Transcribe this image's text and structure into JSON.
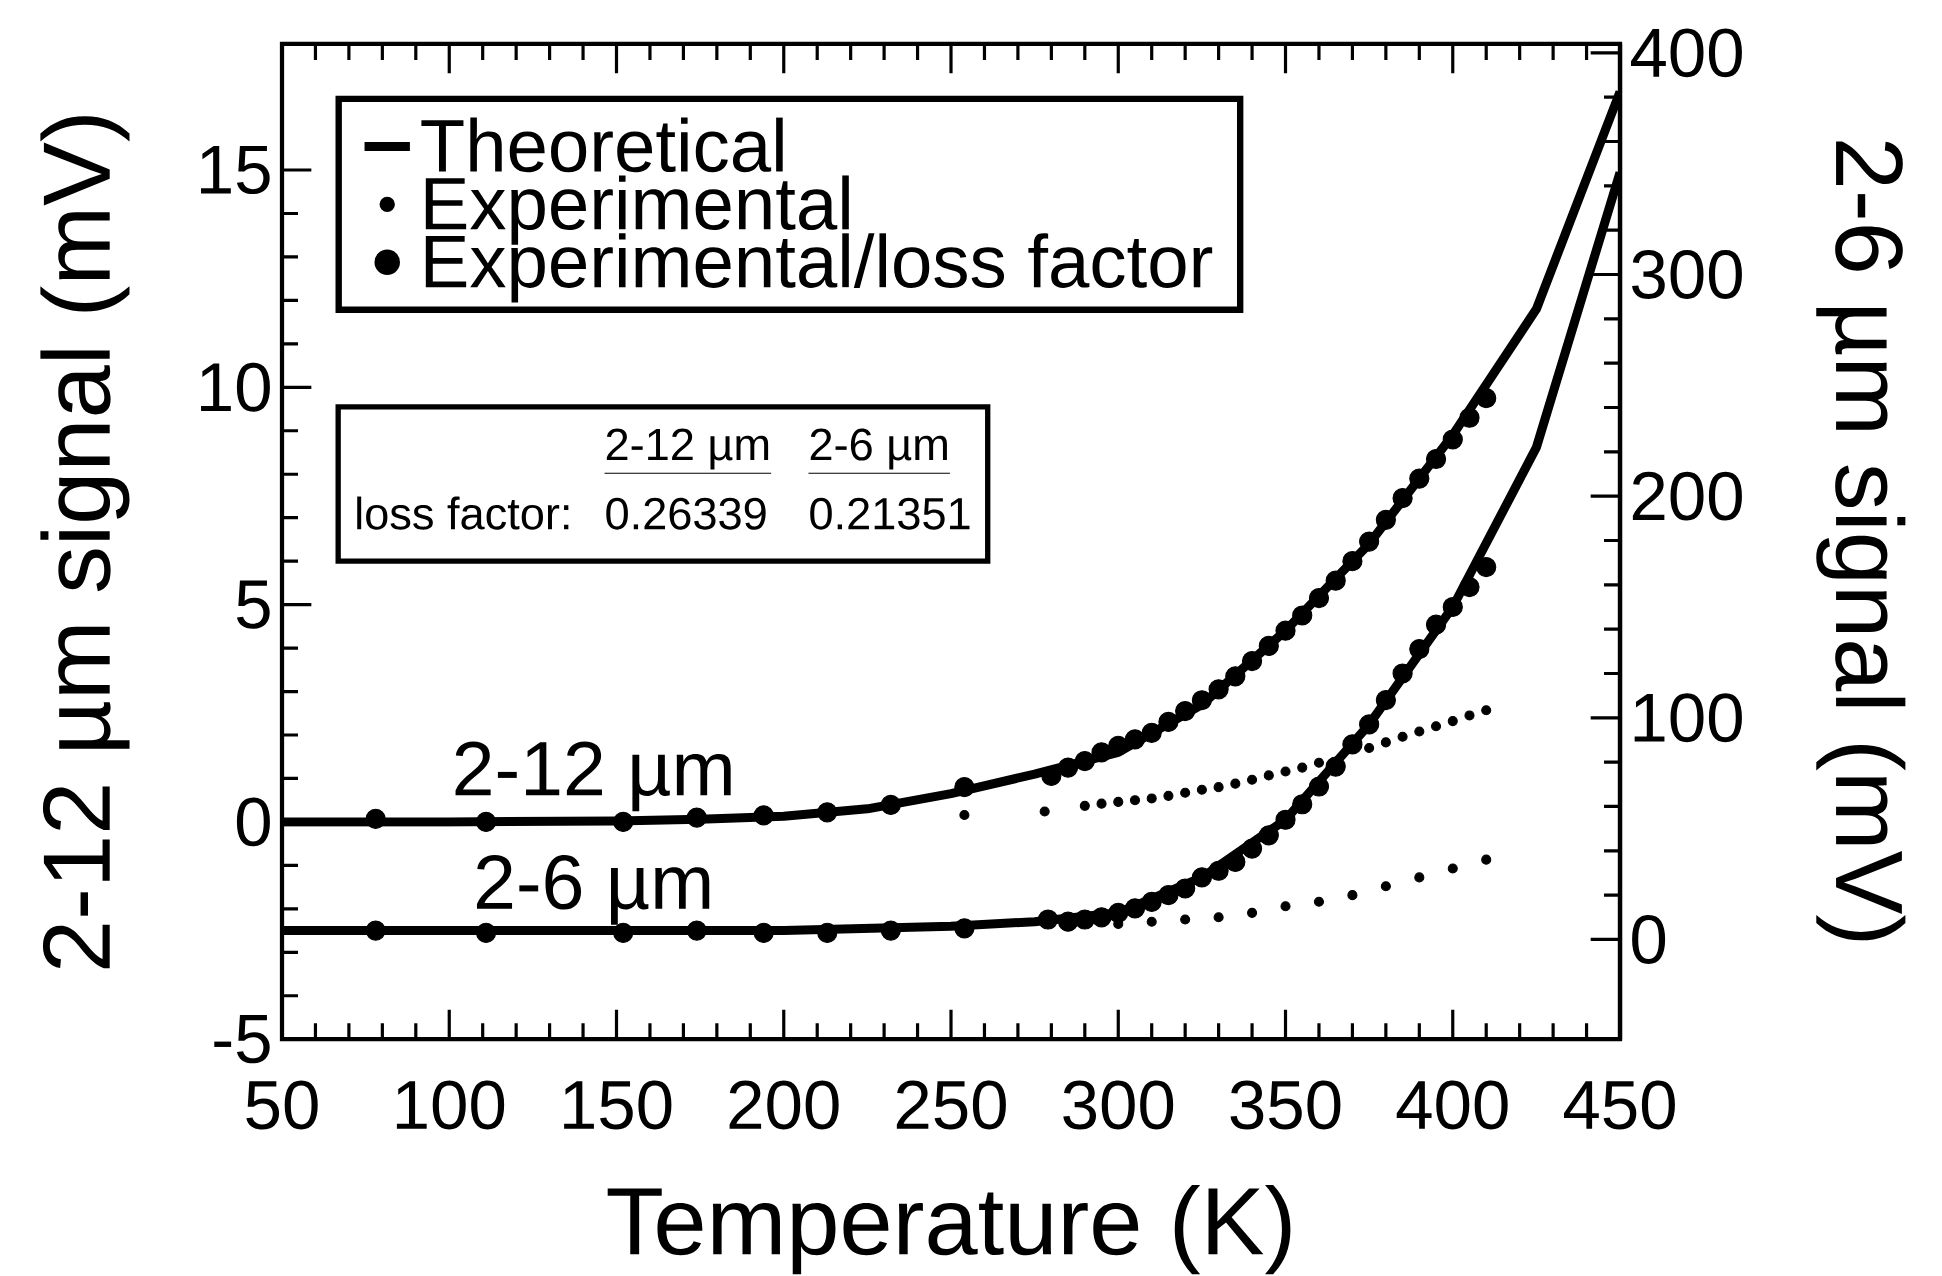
{
  "chart_data": {
    "type": "line",
    "xlabel": "Temperature (K)",
    "ylabel": "2-12 µm signal (mV)",
    "y2label": "2-6 µm signal (mV)",
    "xlim": [
      50,
      450
    ],
    "xticks": [
      50,
      100,
      150,
      200,
      250,
      300,
      350,
      400,
      450
    ],
    "ylim": [
      -5,
      17.9
    ],
    "yticks": [
      -5,
      0,
      5,
      10,
      15
    ],
    "y2lim": [
      -45,
      404
    ],
    "y2ticks": [
      0,
      100,
      200,
      300,
      400
    ],
    "legend": "top left",
    "series": [
      {
        "name": "Theoretical",
        "color": "#000000",
        "marker": "none",
        "line_style": "solid",
        "x": [
          50,
          100,
          150,
          175,
          200,
          225,
          250,
          275,
          300,
          325,
          350,
          375,
          400,
          425,
          450
        ],
        "values": [
          0,
          0,
          0.02,
          0.06,
          0.13,
          0.3,
          0.65,
          1.1,
          1.6,
          2.7,
          4.4,
          6.4,
          8.9,
          11.8,
          16.8
        ]
      },
      {
        "name": "Experimental",
        "type": "scatter",
        "color": "#000000",
        "marker": "circle",
        "x": [
          254,
          278,
          290,
          295,
          300,
          305,
          310,
          315,
          320,
          325,
          330,
          335,
          340,
          345,
          350,
          355,
          360,
          365,
          370,
          375,
          380,
          385,
          390,
          395,
          400,
          405,
          410
        ],
        "values": [
          0.16,
          0.24,
          0.37,
          0.42,
          0.46,
          0.5,
          0.54,
          0.6,
          0.67,
          0.74,
          0.8,
          0.88,
          0.97,
          1.07,
          1.16,
          1.25,
          1.36,
          null,
          null,
          1.7,
          1.83,
          1.96,
          2.08,
          2.2,
          2.32,
          2.45,
          2.57
        ]
      },
      {
        "name": "Experimental/loss factor",
        "type": "scatter",
        "color": "#000000",
        "marker": "circle",
        "x": [
          78,
          111,
          152,
          174,
          194,
          213,
          232,
          254,
          280,
          285,
          290,
          295,
          300,
          305,
          310,
          315,
          320,
          325,
          330,
          335,
          340,
          345,
          350,
          355,
          360,
          365,
          370,
          375,
          380,
          385,
          390,
          395,
          400,
          405,
          410
        ],
        "values": [
          0.07,
          0,
          0,
          0.1,
          0.15,
          0.22,
          0.39,
          0.8,
          1.06,
          1.25,
          1.4,
          1.6,
          1.75,
          1.9,
          2.05,
          2.3,
          2.55,
          2.8,
          3.05,
          3.35,
          3.7,
          4.05,
          4.4,
          4.75,
          5.15,
          5.55,
          6.0,
          6.45,
          6.95,
          7.45,
          7.9,
          8.35,
          8.8,
          9.3,
          9.75
        ]
      },
      {
        "axis": "y2",
        "color": "#000000",
        "marker": "none",
        "line_style": "solid",
        "x": [
          50,
          100,
          150,
          200,
          225,
          250,
          275,
          300,
          325,
          350,
          375,
          400,
          425,
          450
        ],
        "values": [
          4,
          4,
          4,
          4,
          5,
          6,
          8,
          12,
          28,
          54,
          97,
          150,
          222,
          346
        ]
      },
      {
        "axis": "y2",
        "type": "scatter",
        "color": "#000000",
        "marker": "circle",
        "x": [
          300,
          310,
          320,
          330,
          340,
          350,
          360,
          370,
          380,
          390,
          400,
          410
        ],
        "values": [
          7,
          8,
          9,
          10,
          12,
          15,
          17,
          20,
          24,
          28,
          32,
          36
        ]
      },
      {
        "axis": "y2",
        "type": "scatter",
        "color": "#000000",
        "marker": "circle",
        "x": [
          78,
          111,
          152,
          174,
          194,
          213,
          232,
          254,
          279,
          285,
          290,
          295,
          300,
          305,
          310,
          315,
          320,
          325,
          330,
          335,
          340,
          345,
          350,
          355,
          360,
          365,
          370,
          375,
          380,
          385,
          390,
          395,
          400,
          405,
          410
        ],
        "values": [
          4,
          3,
          3,
          4,
          3,
          3,
          4,
          5,
          9,
          8,
          9,
          10,
          12,
          14,
          17,
          20,
          23,
          28,
          31,
          35,
          41,
          47,
          54,
          61,
          69,
          78,
          88,
          97,
          108,
          120,
          131,
          142,
          150,
          159,
          168
        ]
      }
    ],
    "annotations": [
      "2-12 µm",
      "2-6 µm",
      "2-12 µm",
      "2-6 µm",
      "loss factor:",
      "0.26339",
      "0.21351"
    ]
  }
}
